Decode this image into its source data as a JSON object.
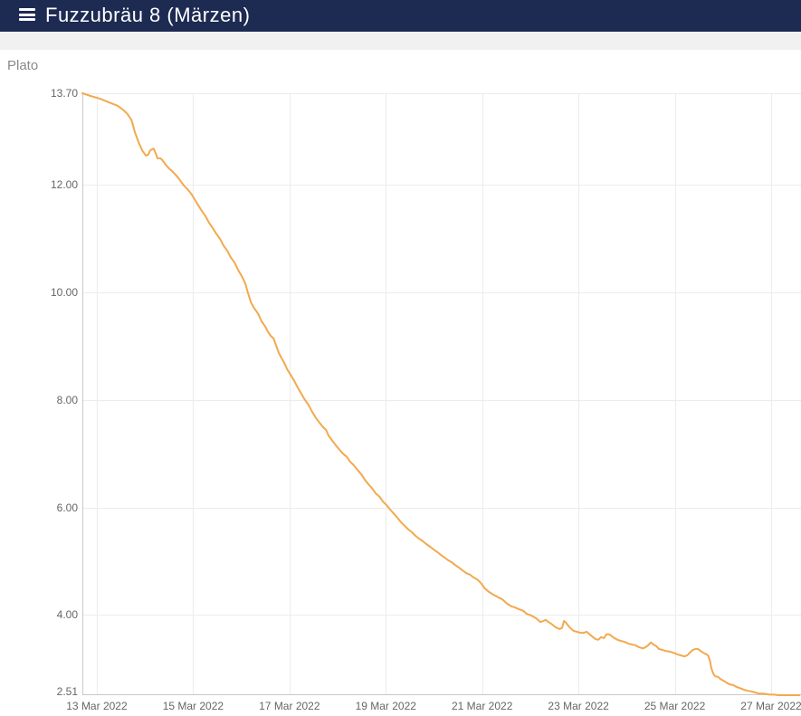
{
  "header": {
    "title": "Fuzzubräu 8 (Märzen)"
  },
  "colors": {
    "header_bg": "#1d2b52",
    "header_text": "#ffffff",
    "subheader_bg": "#f1f1f2",
    "line": "#f2a94e",
    "grid": "#ececec",
    "axis": "#c9c9c9",
    "tick_text": "#666666",
    "chart_title_text": "#8a8a8a",
    "page_bg": "#ffffff"
  },
  "chart_data": {
    "type": "line",
    "title": "Plato",
    "ylabel": "Plato",
    "xlabel": "",
    "grid": true,
    "legend": "none",
    "xlim": [
      0,
      14.92
    ],
    "ylim": [
      2.51,
      13.7
    ],
    "x_unit": "days from axis start (12 Mar 2022 ~17:00)",
    "x_ticks": [
      {
        "t": 0.3,
        "label": "13 Mar 2022"
      },
      {
        "t": 2.3,
        "label": "15 Mar 2022"
      },
      {
        "t": 4.3,
        "label": "17 Mar 2022"
      },
      {
        "t": 6.3,
        "label": "19 Mar 2022"
      },
      {
        "t": 8.3,
        "label": "21 Mar 2022"
      },
      {
        "t": 10.3,
        "label": "23 Mar 2022"
      },
      {
        "t": 12.3,
        "label": "25 Mar 2022"
      },
      {
        "t": 14.3,
        "label": "27 Mar 2022"
      }
    ],
    "y_ticks": [
      {
        "v": 13.7,
        "label": "13.70"
      },
      {
        "v": 12.0,
        "label": "12.00"
      },
      {
        "v": 10.0,
        "label": "10.00"
      },
      {
        "v": 8.0,
        "label": "8.00"
      },
      {
        "v": 6.0,
        "label": "6.00"
      },
      {
        "v": 4.0,
        "label": "4.00"
      },
      {
        "v": 2.51,
        "label": "2.51"
      }
    ],
    "series": [
      {
        "name": "Plato",
        "color": "#f2a94e",
        "points": [
          [
            0,
            13.7
          ],
          [
            0.17,
            13.65
          ],
          [
            0.36,
            13.6
          ],
          [
            0.55,
            13.53
          ],
          [
            0.73,
            13.47
          ],
          [
            0.86,
            13.38
          ],
          [
            0.94,
            13.31
          ],
          [
            1.02,
            13.2
          ],
          [
            1.09,
            12.98
          ],
          [
            1.17,
            12.78
          ],
          [
            1.24,
            12.64
          ],
          [
            1.32,
            12.54
          ],
          [
            1.37,
            12.56
          ],
          [
            1.41,
            12.64
          ],
          [
            1.48,
            12.67
          ],
          [
            1.52,
            12.59
          ],
          [
            1.56,
            12.49
          ],
          [
            1.62,
            12.49
          ],
          [
            1.65,
            12.47
          ],
          [
            1.73,
            12.37
          ],
          [
            1.8,
            12.3
          ],
          [
            1.88,
            12.24
          ],
          [
            1.95,
            12.17
          ],
          [
            2.03,
            12.08
          ],
          [
            2.11,
            11.98
          ],
          [
            2.18,
            11.92
          ],
          [
            2.26,
            11.83
          ],
          [
            2.33,
            11.73
          ],
          [
            2.41,
            11.61
          ],
          [
            2.48,
            11.51
          ],
          [
            2.56,
            11.41
          ],
          [
            2.63,
            11.29
          ],
          [
            2.71,
            11.19
          ],
          [
            2.78,
            11.09
          ],
          [
            2.86,
            10.99
          ],
          [
            2.93,
            10.87
          ],
          [
            3.01,
            10.77
          ],
          [
            3.08,
            10.65
          ],
          [
            3.16,
            10.55
          ],
          [
            3.23,
            10.42
          ],
          [
            3.31,
            10.3
          ],
          [
            3.38,
            10.17
          ],
          [
            3.44,
            9.98
          ],
          [
            3.5,
            9.81
          ],
          [
            3.57,
            9.7
          ],
          [
            3.65,
            9.6
          ],
          [
            3.72,
            9.46
          ],
          [
            3.8,
            9.36
          ],
          [
            3.85,
            9.27
          ],
          [
            3.91,
            9.19
          ],
          [
            3.97,
            9.14
          ],
          [
            4.02,
            9.02
          ],
          [
            4.08,
            8.87
          ],
          [
            4.14,
            8.77
          ],
          [
            4.19,
            8.69
          ],
          [
            4.25,
            8.57
          ],
          [
            4.32,
            8.47
          ],
          [
            4.4,
            8.35
          ],
          [
            4.47,
            8.23
          ],
          [
            4.55,
            8.11
          ],
          [
            4.62,
            8.0
          ],
          [
            4.7,
            7.9
          ],
          [
            4.77,
            7.78
          ],
          [
            4.85,
            7.66
          ],
          [
            4.92,
            7.58
          ],
          [
            5.0,
            7.49
          ],
          [
            5.06,
            7.44
          ],
          [
            5.11,
            7.34
          ],
          [
            5.19,
            7.24
          ],
          [
            5.26,
            7.16
          ],
          [
            5.34,
            7.07
          ],
          [
            5.41,
            7.0
          ],
          [
            5.49,
            6.94
          ],
          [
            5.56,
            6.85
          ],
          [
            5.64,
            6.78
          ],
          [
            5.71,
            6.7
          ],
          [
            5.79,
            6.62
          ],
          [
            5.86,
            6.52
          ],
          [
            5.94,
            6.43
          ],
          [
            6.02,
            6.35
          ],
          [
            6.09,
            6.26
          ],
          [
            6.17,
            6.2
          ],
          [
            6.24,
            6.11
          ],
          [
            6.32,
            6.04
          ],
          [
            6.39,
            5.96
          ],
          [
            6.47,
            5.88
          ],
          [
            6.54,
            5.81
          ],
          [
            6.62,
            5.72
          ],
          [
            6.69,
            5.66
          ],
          [
            6.77,
            5.59
          ],
          [
            6.84,
            5.54
          ],
          [
            6.92,
            5.47
          ],
          [
            6.99,
            5.42
          ],
          [
            7.07,
            5.37
          ],
          [
            7.14,
            5.32
          ],
          [
            7.22,
            5.27
          ],
          [
            7.29,
            5.22
          ],
          [
            7.37,
            5.17
          ],
          [
            7.44,
            5.12
          ],
          [
            7.52,
            5.07
          ],
          [
            7.59,
            5.02
          ],
          [
            7.67,
            4.98
          ],
          [
            7.74,
            4.93
          ],
          [
            7.82,
            4.88
          ],
          [
            7.89,
            4.83
          ],
          [
            7.97,
            4.78
          ],
          [
            8.05,
            4.75
          ],
          [
            8.12,
            4.7
          ],
          [
            8.2,
            4.66
          ],
          [
            8.27,
            4.6
          ],
          [
            8.35,
            4.5
          ],
          [
            8.44,
            4.43
          ],
          [
            8.53,
            4.38
          ],
          [
            8.63,
            4.33
          ],
          [
            8.72,
            4.29
          ],
          [
            8.82,
            4.21
          ],
          [
            8.91,
            4.16
          ],
          [
            8.98,
            4.14
          ],
          [
            9.06,
            4.11
          ],
          [
            9.15,
            4.08
          ],
          [
            9.23,
            4.02
          ],
          [
            9.32,
            3.99
          ],
          [
            9.42,
            3.94
          ],
          [
            9.51,
            3.87
          ],
          [
            9.57,
            3.89
          ],
          [
            9.62,
            3.91
          ],
          [
            9.68,
            3.87
          ],
          [
            9.76,
            3.82
          ],
          [
            9.83,
            3.77
          ],
          [
            9.91,
            3.74
          ],
          [
            9.96,
            3.76
          ],
          [
            10.0,
            3.89
          ],
          [
            10.04,
            3.86
          ],
          [
            10.08,
            3.81
          ],
          [
            10.13,
            3.76
          ],
          [
            10.19,
            3.71
          ],
          [
            10.26,
            3.69
          ],
          [
            10.34,
            3.67
          ],
          [
            10.41,
            3.67
          ],
          [
            10.47,
            3.69
          ],
          [
            10.53,
            3.64
          ],
          [
            10.6,
            3.59
          ],
          [
            10.66,
            3.55
          ],
          [
            10.71,
            3.54
          ],
          [
            10.77,
            3.59
          ],
          [
            10.83,
            3.57
          ],
          [
            10.88,
            3.64
          ],
          [
            10.94,
            3.64
          ],
          [
            11.0,
            3.6
          ],
          [
            11.05,
            3.57
          ],
          [
            11.11,
            3.54
          ],
          [
            11.18,
            3.52
          ],
          [
            11.26,
            3.5
          ],
          [
            11.33,
            3.47
          ],
          [
            11.41,
            3.45
          ],
          [
            11.48,
            3.44
          ],
          [
            11.56,
            3.4
          ],
          [
            11.64,
            3.38
          ],
          [
            11.69,
            3.4
          ],
          [
            11.75,
            3.44
          ],
          [
            11.8,
            3.49
          ],
          [
            11.86,
            3.45
          ],
          [
            11.92,
            3.42
          ],
          [
            11.97,
            3.37
          ],
          [
            12.05,
            3.35
          ],
          [
            12.12,
            3.33
          ],
          [
            12.2,
            3.32
          ],
          [
            12.27,
            3.3
          ],
          [
            12.35,
            3.27
          ],
          [
            12.42,
            3.25
          ],
          [
            12.5,
            3.23
          ],
          [
            12.56,
            3.25
          ],
          [
            12.61,
            3.3
          ],
          [
            12.67,
            3.35
          ],
          [
            12.73,
            3.37
          ],
          [
            12.78,
            3.37
          ],
          [
            12.84,
            3.33
          ],
          [
            12.89,
            3.3
          ],
          [
            12.95,
            3.27
          ],
          [
            12.99,
            3.25
          ],
          [
            13.03,
            3.15
          ],
          [
            13.06,
            3.01
          ],
          [
            13.1,
            2.91
          ],
          [
            13.14,
            2.86
          ],
          [
            13.2,
            2.85
          ],
          [
            13.25,
            2.81
          ],
          [
            13.31,
            2.78
          ],
          [
            13.36,
            2.75
          ],
          [
            13.44,
            2.71
          ],
          [
            13.51,
            2.7
          ],
          [
            13.59,
            2.66
          ],
          [
            13.66,
            2.64
          ],
          [
            13.74,
            2.61
          ],
          [
            13.82,
            2.59
          ],
          [
            13.89,
            2.58
          ],
          [
            13.97,
            2.56
          ],
          [
            14.04,
            2.54
          ],
          [
            14.12,
            2.54
          ],
          [
            14.19,
            2.53
          ],
          [
            14.27,
            2.52
          ],
          [
            14.36,
            2.52
          ],
          [
            14.45,
            2.51
          ],
          [
            14.56,
            2.51
          ],
          [
            14.68,
            2.51
          ],
          [
            14.77,
            2.51
          ],
          [
            14.89,
            2.51
          ]
        ]
      }
    ]
  }
}
